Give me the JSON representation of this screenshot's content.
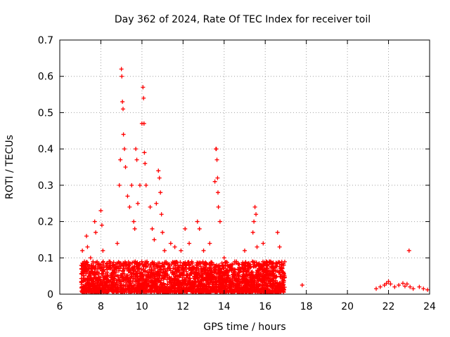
{
  "chart_data": {
    "type": "scatter",
    "title": "Day 362 of 2024, Rate Of TEC Index for receiver toil",
    "xlabel": "GPS time / hours",
    "ylabel": "ROTI / TECUs",
    "xlim": [
      6,
      24
    ],
    "ylim": [
      0,
      0.7
    ],
    "xticks": [
      "6",
      "8",
      "10",
      "12",
      "14",
      "16",
      "18",
      "20",
      "22",
      "24"
    ],
    "yticks": [
      "0",
      "0.1",
      "0.2",
      "0.3",
      "0.4",
      "0.5",
      "0.6",
      "0.7"
    ],
    "grid": true,
    "marker": "+",
    "color": "#ff0000",
    "series": [
      {
        "name": "ROTI",
        "x": [
          7.1,
          7.2,
          7.3,
          7.35,
          7.5,
          7.6,
          7.7,
          7.75,
          8.0,
          8.05,
          8.1,
          8.4,
          8.6,
          8.8,
          8.9,
          8.95,
          9.0,
          9.02,
          9.05,
          9.08,
          9.1,
          9.15,
          9.2,
          9.3,
          9.4,
          9.5,
          9.6,
          9.65,
          9.7,
          9.75,
          9.8,
          9.9,
          10.0,
          10.05,
          10.08,
          10.1,
          10.12,
          10.15,
          10.2,
          10.4,
          10.5,
          10.6,
          10.7,
          10.8,
          10.85,
          10.9,
          10.95,
          11.0,
          11.1,
          11.4,
          11.6,
          11.9,
          12.1,
          12.3,
          12.7,
          12.8,
          13.0,
          13.3,
          13.55,
          13.6,
          13.62,
          13.65,
          13.68,
          13.7,
          13.72,
          13.8,
          14.0,
          14.3,
          14.6,
          15.0,
          15.4,
          15.45,
          15.5,
          15.55,
          15.6,
          15.9,
          16.2,
          16.6,
          16.7,
          16.9,
          17.8,
          21.4,
          21.6,
          21.8,
          21.9,
          22.0,
          22.1,
          22.3,
          22.5,
          22.7,
          22.8,
          22.9,
          23.0,
          23.05,
          23.2,
          23.5,
          23.7,
          23.9
        ],
        "y": [
          0.12,
          0.09,
          0.16,
          0.13,
          0.1,
          0.07,
          0.2,
          0.17,
          0.23,
          0.19,
          0.12,
          0.09,
          0.08,
          0.14,
          0.3,
          0.37,
          0.62,
          0.6,
          0.53,
          0.51,
          0.44,
          0.4,
          0.35,
          0.27,
          0.24,
          0.3,
          0.2,
          0.18,
          0.4,
          0.37,
          0.25,
          0.3,
          0.47,
          0.57,
          0.54,
          0.47,
          0.39,
          0.36,
          0.3,
          0.24,
          0.18,
          0.15,
          0.25,
          0.34,
          0.32,
          0.28,
          0.22,
          0.17,
          0.12,
          0.14,
          0.13,
          0.12,
          0.18,
          0.14,
          0.2,
          0.18,
          0.12,
          0.14,
          0.31,
          0.4,
          0.4,
          0.37,
          0.32,
          0.28,
          0.24,
          0.2,
          0.1,
          0.08,
          0.09,
          0.12,
          0.17,
          0.2,
          0.24,
          0.22,
          0.13,
          0.14,
          0.09,
          0.17,
          0.13,
          0.08,
          0.025,
          0.015,
          0.02,
          0.025,
          0.03,
          0.035,
          0.028,
          0.02,
          0.025,
          0.03,
          0.022,
          0.028,
          0.12,
          0.02,
          0.015,
          0.02,
          0.015,
          0.012
        ]
      }
    ],
    "dense_band": {
      "x_range": [
        7.05,
        16.95
      ],
      "y_range": [
        0.005,
        0.09
      ]
    }
  }
}
